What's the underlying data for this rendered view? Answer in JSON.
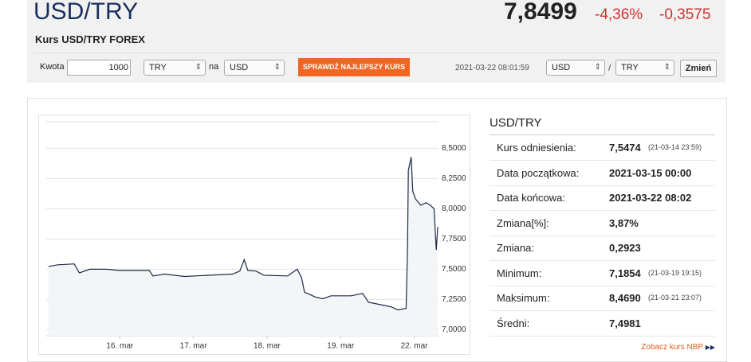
{
  "header": {
    "title": "USD/TRY",
    "subtitle": "Kurs USD/TRY FOREX",
    "price": "7,8499",
    "change_pct": "-4,36%",
    "change": "-0,3575"
  },
  "form": {
    "amount_label": "Kwota",
    "amount": "1000",
    "from": "TRY",
    "to_label": "na",
    "to": "USD",
    "button": "SPRAWDŹ NAJLEPSZY KURS",
    "timestamp": "2021-03-22 08:01:59",
    "pair_base": "USD",
    "separator": "/",
    "pair_quote": "TRY",
    "switch_button": "Zmień"
  },
  "stats": {
    "title": "USD/TRY",
    "rows": [
      {
        "label": "Kurs odniesienia:",
        "value": "7,5474",
        "note": "(21-03-14 23:59)"
      },
      {
        "label": "Data początkowa:",
        "value": "2021-03-15 00:00"
      },
      {
        "label": "Data końcowa:",
        "value": "2021-03-22 08:02"
      },
      {
        "label": "Zmiana[%]:",
        "value": "3,87%"
      },
      {
        "label": "Zmiana:",
        "value": "0,2923"
      },
      {
        "label": "Minimum:",
        "value": "7,1854",
        "note": "(21-03-19 19:15)"
      },
      {
        "label": "Maksimum:",
        "value": "8,4690",
        "note": "(21-03-21 23:07)"
      },
      {
        "label": "Średni:",
        "value": "7,4981"
      }
    ],
    "link": "Zobacz kurs NBP"
  },
  "chart_data": {
    "type": "line",
    "color": "#1c2b4a",
    "area_color": "#f3f5f7",
    "grid": true,
    "x": [
      0.03,
      0.16,
      0.38,
      0.45,
      0.59,
      0.81,
      1.0,
      1.4,
      1.45,
      1.61,
      1.88,
      2.2,
      2.53,
      2.63,
      2.69,
      2.74,
      2.85,
      2.96,
      3.28,
      3.41,
      3.47,
      3.51,
      3.55,
      3.66,
      3.76,
      3.87,
      4.14,
      4.3,
      4.38,
      4.52,
      4.68,
      4.78,
      4.89,
      4.91,
      4.92,
      4.96,
      4.98,
      5.02,
      5.09,
      5.16,
      5.22,
      5.27,
      5.3,
      5.32
    ],
    "values": [
      7.524,
      7.537,
      7.544,
      7.47,
      7.5,
      7.5,
      7.49,
      7.49,
      7.445,
      7.46,
      7.44,
      7.45,
      7.46,
      7.485,
      7.58,
      7.49,
      7.485,
      7.45,
      7.445,
      7.5,
      7.43,
      7.31,
      7.3,
      7.27,
      7.256,
      7.28,
      7.28,
      7.3,
      7.227,
      7.21,
      7.19,
      7.164,
      7.177,
      7.688,
      8.317,
      8.428,
      8.146,
      8.08,
      8.03,
      8.05,
      8.03,
      8.0,
      7.66,
      7.85
    ],
    "xlim": [
      0,
      5.33
    ],
    "ylim": [
      6.95,
      8.72
    ],
    "xticks": [
      {
        "value": 1,
        "label": "16. mar"
      },
      {
        "value": 2,
        "label": "17. mar"
      },
      {
        "value": 3,
        "label": "18. mar"
      },
      {
        "value": 4,
        "label": "19. mar"
      },
      {
        "value": 5,
        "label": "22. mar"
      }
    ],
    "yticks": [
      {
        "value": 7.0,
        "label": "7,0000"
      },
      {
        "value": 7.25,
        "label": "7,2500"
      },
      {
        "value": 7.5,
        "label": "7,5000"
      },
      {
        "value": 7.75,
        "label": "7,7500"
      },
      {
        "value": 8.0,
        "label": "8,0000"
      },
      {
        "value": 8.25,
        "label": "8,2500"
      },
      {
        "value": 8.5,
        "label": "8,5000"
      }
    ]
  }
}
